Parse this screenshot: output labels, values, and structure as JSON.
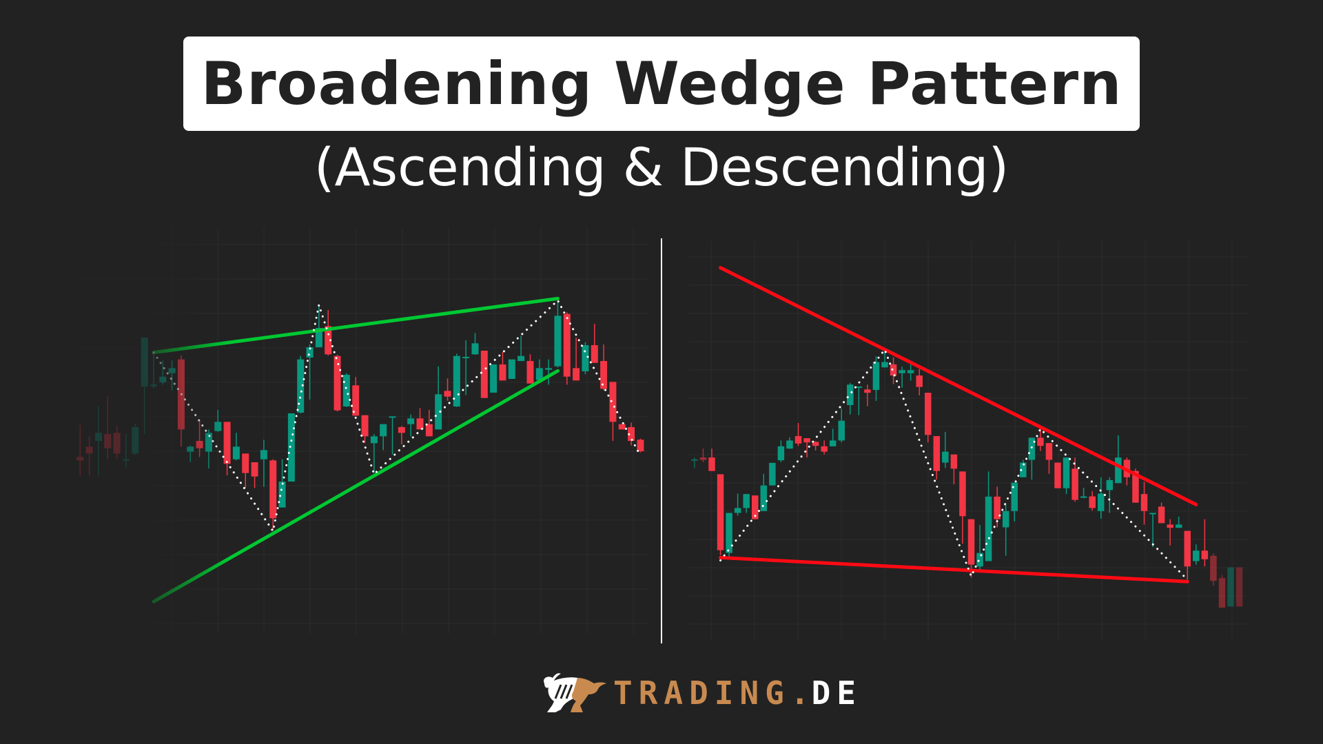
{
  "title": "Broadening Wedge Pattern",
  "subtitle": "(Ascending & Descending)",
  "logo": {
    "brand": "TRADING.",
    "tld": "DE",
    "icon": "bull-icon",
    "brand_color": "#c98a50"
  },
  "colors": {
    "background": "#222222",
    "bullish": "#089981",
    "bearish": "#f23645",
    "ascending_trendline": "#00c832",
    "descending_trendline": "#ff0a14",
    "zigzag": "#ffffff",
    "grid": "#2c2c2c"
  },
  "chart_data": [
    {
      "type": "candlestick",
      "pattern": "ascending broadening wedge",
      "title": "",
      "axes": "none",
      "grid": true,
      "trendline_color": "#00c832",
      "candles_ohlc": [
        [
          71,
          85,
          63,
          69.5
        ],
        [
          75.5,
          80,
          63,
          72.5
        ],
        [
          78,
          93,
          63,
          81.5
        ],
        [
          81,
          97.5,
          70,
          74.8
        ],
        [
          81.5,
          84.5,
          70,
          72.5
        ],
        [
          69.5,
          81,
          66.5,
          70
        ],
        [
          72.5,
          85.5,
          72,
          84
        ],
        [
          101.7,
          106,
          81,
          123
        ],
        [
          102,
          116.5,
          101,
          102.5
        ],
        [
          103.5,
          113,
          102.5,
          106
        ],
        [
          107.5,
          113,
          100,
          109.7
        ],
        [
          113.5,
          115.2,
          75.5,
          83
        ],
        [
          73.3,
          76,
          68.8,
          75.5
        ],
        [
          78,
          87.2,
          71,
          74.8
        ],
        [
          73.3,
          83,
          66,
          81.5
        ],
        [
          82.3,
          91.5,
          82,
          86.3
        ],
        [
          86.3,
          86.3,
          63,
          68
        ],
        [
          70,
          81.5,
          69.5,
          75.5
        ],
        [
          72.5,
          72.5,
          57.5,
          64
        ],
        [
          68.7,
          68.7,
          57.5,
          62.5
        ],
        [
          70,
          78.5,
          58,
          74
        ],
        [
          69.5,
          70,
          39,
          44.3
        ],
        [
          49,
          70,
          49,
          60.3
        ],
        [
          60.3,
          90,
          60.3,
          90
        ],
        [
          90.3,
          115,
          90,
          113.5
        ],
        [
          114.3,
          120,
          96,
          118.8
        ],
        [
          118.8,
          137,
          118.8,
          127.2
        ],
        [
          128,
          135,
          115.2,
          115.7
        ],
        [
          115,
          115.5,
          90.8,
          91.3
        ],
        [
          93,
          107.5,
          92.8,
          106.8
        ],
        [
          102.2,
          105.8,
          89,
          89
        ],
        [
          89.2,
          89.2,
          77,
          80
        ],
        [
          77,
          81,
          64,
          80
        ],
        [
          80,
          85.3,
          74,
          85.3
        ],
        [
          88.4,
          88.7,
          72,
          88.7
        ],
        [
          84,
          84.5,
          76.5,
          81.5
        ],
        [
          85.3,
          89.5,
          80,
          87.8
        ],
        [
          87.8,
          92.3,
          83,
          83
        ],
        [
          85.3,
          91.5,
          80,
          80
        ],
        [
          83,
          110.5,
          83,
          98.3
        ],
        [
          99.8,
          105.2,
          95.5,
          97.3
        ],
        [
          93,
          116,
          92.8,
          115
        ],
        [
          114.3,
          121.8,
          98,
          114.6
        ],
        [
          115.7,
          125,
          115.5,
          120.5
        ],
        [
          117.3,
          117.3,
          96.7,
          96.7
        ],
        [
          99,
          111.3,
          99,
          111.3
        ],
        [
          111.3,
          116.7,
          104.3,
          104.3
        ],
        [
          105,
          113.5,
          105,
          113.5
        ],
        [
          112.8,
          123.8,
          112.8,
          115
        ],
        [
          112.8,
          115.7,
          103,
          103
        ],
        [
          104.5,
          113.5,
          104.5,
          109.7
        ],
        [
          109,
          113.5,
          102.5,
          109.7
        ],
        [
          110.5,
          139,
          110,
          132.5
        ],
        [
          133.3,
          134,
          102.5,
          106
        ],
        [
          109.7,
          123,
          104.3,
          104.3
        ],
        [
          108.3,
          121,
          107,
          119.7
        ],
        [
          119.7,
          129,
          112,
          112
        ],
        [
          112.8,
          120,
          100,
          100.7
        ],
        [
          103.7,
          103.7,
          78,
          86.3
        ],
        [
          85.3,
          85.3,
          83,
          83
        ],
        [
          84,
          86,
          76,
          78
        ],
        [
          78.5,
          79,
          73,
          73.5
        ]
      ],
      "trendlines": [
        {
          "name": "resistance",
          "from": [
            8,
            116.5
          ],
          "to": [
            52,
            140
          ]
        },
        {
          "name": "support",
          "from": [
            8,
            8
          ],
          "to": [
            52,
            108.5
          ]
        }
      ],
      "zigzag": [
        [
          8,
          116.5
        ],
        [
          21,
          38.7
        ],
        [
          26,
          137.2
        ],
        [
          32,
          63.5
        ],
        [
          52,
          139.2
        ],
        [
          61,
          71.5
        ]
      ]
    },
    {
      "type": "candlestick",
      "pattern": "descending broadening wedge",
      "title": "",
      "axes": "none",
      "grid": true,
      "trendline_color": "#ff0a14",
      "candles_ohlc": [
        [
          69,
          70,
          65.5,
          69.2
        ],
        [
          70,
          73.8,
          68,
          69
        ],
        [
          70,
          73.8,
          64.2,
          64.2
        ],
        [
          62.8,
          62.8,
          28,
          30.2
        ],
        [
          29,
          46.2,
          27.5,
          46.2
        ],
        [
          46.2,
          54.5,
          45,
          48.3
        ],
        [
          48.3,
          54.3,
          46.2,
          54.3
        ],
        [
          53.7,
          53.7,
          43.5,
          43.5
        ],
        [
          47,
          63,
          47,
          58
        ],
        [
          58,
          67.7,
          58,
          67.7
        ],
        [
          68.8,
          77.3,
          68,
          74.8
        ],
        [
          73.8,
          78.7,
          73.8,
          77.3
        ],
        [
          79.2,
          84.8,
          75,
          76
        ],
        [
          78.3,
          78.3,
          70,
          76.5
        ],
        [
          76.7,
          77,
          73,
          75
        ],
        [
          74.8,
          77.3,
          71.3,
          72.5
        ],
        [
          74.8,
          82.4,
          74.8,
          77.3
        ],
        [
          77.3,
          91,
          76.5,
          85.8
        ],
        [
          92.5,
          102,
          88.5,
          101.3
        ],
        [
          100.3,
          100.5,
          88.2,
          100.5
        ],
        [
          99.2,
          101.3,
          92,
          97.8
        ],
        [
          99,
          113.5,
          94.3,
          111
        ],
        [
          108.7,
          116.5,
          108.7,
          111
        ],
        [
          110,
          113,
          101.5,
          105.2
        ],
        [
          106.2,
          109,
          100,
          107.5
        ],
        [
          106.2,
          110,
          103,
          107.5
        ],
        [
          105.2,
          108,
          96.7,
          100.3
        ],
        [
          97.8,
          97.8,
          76.5,
          79.7
        ],
        [
          79.2,
          79.2,
          60.5,
          64.2
        ],
        [
          67.8,
          81,
          65.5,
          72.5
        ],
        [
          71.3,
          71.3,
          58.5,
          65.2
        ],
        [
          64,
          64,
          33,
          44.8
        ],
        [
          43.5,
          43.5,
          18.5,
          24
        ],
        [
          23.2,
          41,
          21.8,
          29
        ],
        [
          25.5,
          64,
          25.5,
          53.2
        ],
        [
          53.2,
          57.5,
          40,
          43.5
        ],
        [
          40,
          49.5,
          27.8,
          47
        ],
        [
          47,
          59.2,
          42.5,
          59.2
        ],
        [
          61.5,
          69,
          61.5,
          67.8
        ],
        [
          69,
          78.5,
          60.5,
          78.5
        ],
        [
          78.5,
          82.5,
          72.8,
          75
        ],
        [
          76.2,
          76.2,
          63,
          69
        ],
        [
          67.8,
          67.8,
          56.8,
          56.8
        ],
        [
          56.8,
          70,
          54.3,
          70
        ],
        [
          65.2,
          70,
          51,
          51.8
        ],
        [
          52.8,
          57,
          52.5,
          53.3
        ],
        [
          53.3,
          55.5,
          47.2,
          48.3
        ],
        [
          47,
          61.5,
          43.7,
          54.5
        ],
        [
          56,
          61.5,
          46.2,
          60.3
        ],
        [
          59,
          79.5,
          59,
          70
        ],
        [
          69,
          70,
          58,
          61.5
        ],
        [
          64.2,
          65.2,
          50.6,
          50.6
        ],
        [
          54.3,
          59.5,
          41.2,
          47
        ],
        [
          45.8,
          46.2,
          31.5,
          46.2
        ],
        [
          48.9,
          50.6,
          41.8,
          41.8
        ],
        [
          41.2,
          43.5,
          32.2,
          39.8
        ],
        [
          39.8,
          44.6,
          39.8,
          41.2
        ],
        [
          38.5,
          38.5,
          17.5,
          23.2
        ],
        [
          25.5,
          32.7,
          24,
          30
        ],
        [
          30,
          43.5,
          23.2,
          26.3
        ],
        [
          27.8,
          28.8,
          15,
          17
        ],
        [
          18.2,
          19.5,
          5.5,
          5.5
        ],
        [
          6,
          22.8,
          6,
          22.8
        ],
        [
          22.8,
          22.8,
          6,
          6
        ]
      ],
      "trendlines": [
        {
          "name": "resistance",
          "from": [
            3,
            151.5
          ],
          "to": [
            58,
            49.8
          ]
        },
        {
          "name": "support",
          "from": [
            3,
            27
          ],
          "to": [
            57,
            16.7
          ]
        }
      ],
      "zigzag": [
        [
          3,
          25.8
        ],
        [
          22,
          116.3
        ],
        [
          32,
          19
        ],
        [
          40,
          82.3
        ],
        [
          57,
          17.5
        ]
      ]
    }
  ]
}
